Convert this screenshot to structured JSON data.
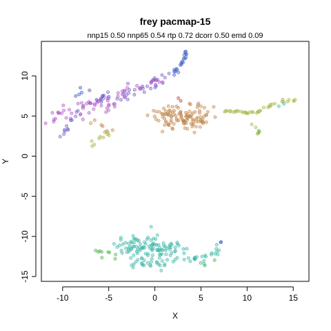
{
  "chart_data": {
    "type": "scatter",
    "title": "frey pacmap-15",
    "subtitle": "nnp15 0.50 nnp65 0.54 rtp 0.72 dcorr 0.50 emd 0.09",
    "xlabel": "X",
    "ylabel": "Y",
    "xlim": [
      -12.3,
      16.7
    ],
    "ylim": [
      -15.6,
      14.3
    ],
    "xticks": [
      -10,
      -5,
      0,
      5,
      10,
      15
    ],
    "yticks": [
      -15,
      -10,
      -5,
      0,
      5,
      10
    ],
    "grid": false,
    "legend": "none",
    "colors": {
      "blue": "#3f5fc8",
      "violet": "#7a5fc8",
      "magenta": "#b05ac8",
      "tan": "#c08a4f",
      "olive": "#a8b84a",
      "green": "#4fb84a",
      "teal": "#3fb8a8",
      "red": "#c04a3a"
    },
    "clusters": [
      {
        "color": "blue",
        "density": 22,
        "spread": 0.25,
        "path": [
          [
            1.8,
            10.0
          ],
          [
            2.6,
            11.0
          ],
          [
            3.1,
            12.0
          ],
          [
            3.5,
            13.2
          ]
        ]
      },
      {
        "color": "violet",
        "density": 16,
        "spread": 0.9,
        "path": [
          [
            -5.5,
            7.0
          ],
          [
            -2.5,
            8.0
          ],
          [
            0.0,
            9.2
          ],
          [
            2.0,
            10.2
          ]
        ]
      },
      {
        "color": "blue",
        "density": 10,
        "spread": 0.5,
        "path": [
          [
            -8.8,
            8.0
          ],
          [
            -6.5,
            7.6
          ],
          [
            -5.0,
            7.3
          ]
        ]
      },
      {
        "color": "magenta",
        "density": 18,
        "spread": 0.8,
        "path": [
          [
            -11.0,
            5.5
          ],
          [
            -8.5,
            5.8
          ],
          [
            -6.0,
            6.0
          ],
          [
            -4.0,
            6.3
          ]
        ]
      },
      {
        "color": "magenta",
        "density": 14,
        "spread": 0.35,
        "path": [
          [
            -8.0,
            6.2
          ],
          [
            -4.5,
            7.5
          ],
          [
            -1.5,
            8.8
          ],
          [
            0.8,
            9.5
          ]
        ]
      },
      {
        "color": "violet",
        "density": 14,
        "spread": 0.3,
        "path": [
          [
            -10.2,
            2.2
          ],
          [
            -9.2,
            4.0
          ],
          [
            -8.5,
            5.5
          ]
        ]
      },
      {
        "color": "magenta",
        "density": 8,
        "spread": 0.4,
        "path": [
          [
            -11.5,
            4.3
          ],
          [
            -10.0,
            4.5
          ]
        ]
      },
      {
        "color": "tan",
        "density": 10,
        "spread": 0.6,
        "path": [
          [
            -7.5,
            4.5
          ],
          [
            -6.0,
            4.0
          ],
          [
            -4.8,
            3.4
          ]
        ]
      },
      {
        "color": "olive",
        "density": 12,
        "spread": 0.3,
        "path": [
          [
            -6.6,
            1.4
          ],
          [
            -6.2,
            2.2
          ],
          [
            -5.0,
            2.8
          ],
          [
            -4.5,
            3.0
          ]
        ]
      },
      {
        "color": "tan",
        "density": 90,
        "spread": 1.35,
        "path": [
          [
            0.5,
            5.0
          ],
          [
            2.5,
            4.6
          ],
          [
            4.5,
            4.6
          ],
          [
            5.3,
            5.4
          ]
        ]
      },
      {
        "color": "red",
        "density": 6,
        "spread": 0.35,
        "path": [
          [
            2.6,
            7.0
          ],
          [
            3.5,
            6.5
          ]
        ]
      },
      {
        "color": "olive",
        "density": 22,
        "spread": 0.15,
        "path": [
          [
            7.5,
            5.6
          ],
          [
            9.5,
            5.5
          ],
          [
            11.0,
            5.4
          ],
          [
            11.8,
            5.9
          ],
          [
            12.5,
            6.4
          ]
        ]
      },
      {
        "color": "olive",
        "density": 12,
        "spread": 0.18,
        "path": [
          [
            12.5,
            6.4
          ],
          [
            14.0,
            6.8
          ],
          [
            15.6,
            7.2
          ]
        ]
      },
      {
        "color": "teal",
        "density": 4,
        "spread": 0.15,
        "path": [
          [
            13.3,
            6.4
          ],
          [
            14.0,
            6.6
          ]
        ]
      },
      {
        "color": "olive",
        "density": 8,
        "spread": 0.22,
        "path": [
          [
            10.8,
            4.2
          ],
          [
            11.0,
            3.5
          ],
          [
            11.2,
            2.9
          ]
        ]
      },
      {
        "color": "green",
        "density": 4,
        "spread": 0.15,
        "path": [
          [
            11.1,
            3.2
          ],
          [
            11.3,
            2.9
          ]
        ]
      },
      {
        "color": "teal",
        "density": 70,
        "spread": 1.1,
        "path": [
          [
            -3.5,
            -11.5
          ],
          [
            -1.5,
            -11.0
          ],
          [
            0.5,
            -11.5
          ],
          [
            2.5,
            -12.0
          ]
        ]
      },
      {
        "color": "green",
        "density": 14,
        "spread": 0.4,
        "path": [
          [
            -6.5,
            -11.5
          ],
          [
            -5.5,
            -12.3
          ],
          [
            -4.0,
            -12.5
          ]
        ]
      },
      {
        "color": "teal",
        "density": 18,
        "spread": 0.45,
        "path": [
          [
            3.0,
            -12.5
          ],
          [
            5.0,
            -13.0
          ],
          [
            6.5,
            -12.3
          ],
          [
            7.0,
            -11.0
          ]
        ]
      },
      {
        "color": "green",
        "density": 8,
        "spread": 0.35,
        "path": [
          [
            5.5,
            -13.5
          ],
          [
            6.5,
            -12.8
          ]
        ]
      },
      {
        "color": "blue",
        "density": 5,
        "spread": 0.15,
        "path": [
          [
            6.8,
            -11.0
          ],
          [
            7.2,
            -10.5
          ]
        ]
      },
      {
        "color": "teal",
        "density": 22,
        "spread": 0.55,
        "path": [
          [
            -3.0,
            -13.2
          ],
          [
            -1.0,
            -13.6
          ],
          [
            1.5,
            -13.5
          ]
        ]
      }
    ]
  }
}
